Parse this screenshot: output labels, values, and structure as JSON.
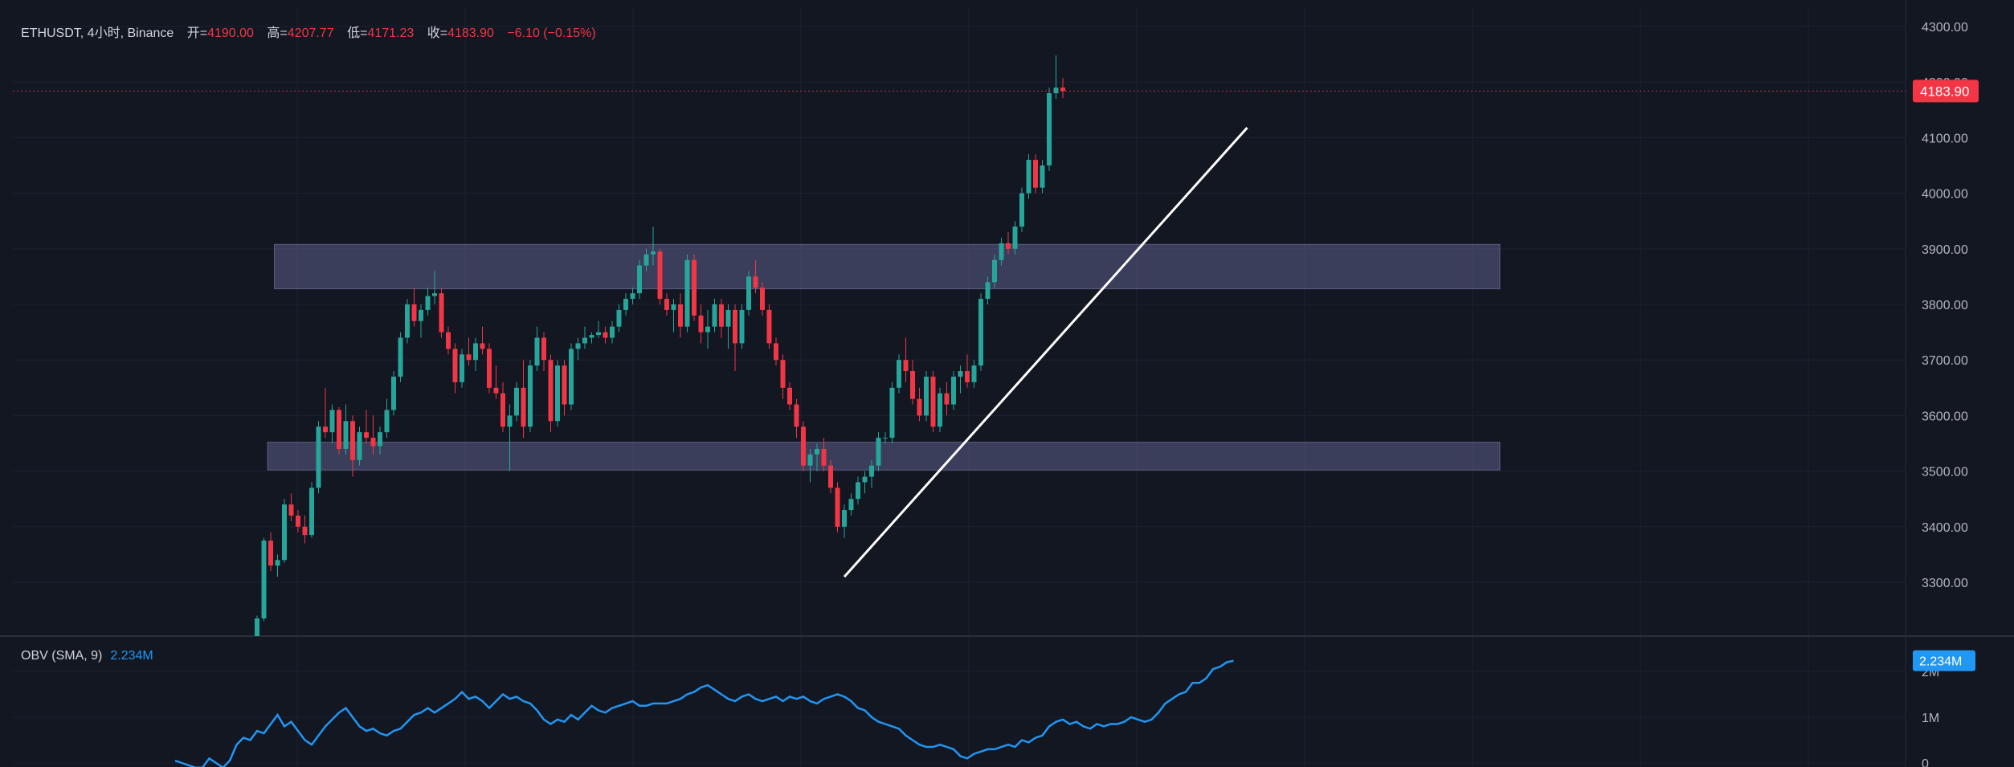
{
  "header": {
    "symbol": "ETHUSDT, 4小时, Binance",
    "open_label": "开=",
    "open_value": "4190.00",
    "high_label": "高=",
    "high_value": "4207.77",
    "low_label": "低=",
    "low_value": "4171.23",
    "close_label": "收=",
    "close_value": "4183.90",
    "change": "−6.10 (−0.15%)"
  },
  "obv": {
    "label": "OBV (SMA, 9)",
    "value": "2.234M"
  },
  "colors": {
    "background": "#131722",
    "up": "#26a69a",
    "down": "#f23645",
    "obv_line": "#2196f3",
    "zone": "#5d5f8a",
    "trendline": "#ffffff",
    "grid": "#1e2230"
  },
  "chart_data": [
    {
      "type": "candlestick",
      "title": "ETHUSDT, 4小时, Binance",
      "y_axis_side": "right",
      "ylim": [
        3190,
        4300
      ],
      "y_ticks": [
        "4300.00",
        "4200.00",
        "4100.00",
        "4000.00",
        "3900.00",
        "3800.00",
        "3700.00",
        "3600.00",
        "3500.00",
        "3400.00",
        "3300.00"
      ],
      "last_price_label": "4183.90",
      "last_price": 4183.9,
      "zones": [
        {
          "from": 3828,
          "to": 3908,
          "start_bar": 3,
          "end_bar": 182
        },
        {
          "from": 3502,
          "to": 3552,
          "start_bar": 2,
          "end_bar": 182
        }
      ],
      "trendline": {
        "from": {
          "bar": 86,
          "price": 3310
        },
        "to": {
          "bar": 145,
          "price": 4118
        }
      },
      "candles": [
        [
          3180,
          3240,
          3175,
          3235
        ],
        [
          3235,
          3380,
          3230,
          3375
        ],
        [
          3375,
          3390,
          3320,
          3330
        ],
        [
          3330,
          3350,
          3310,
          3340
        ],
        [
          3340,
          3450,
          3335,
          3440
        ],
        [
          3440,
          3460,
          3410,
          3420
        ],
        [
          3420,
          3430,
          3390,
          3400
        ],
        [
          3400,
          3420,
          3370,
          3385
        ],
        [
          3385,
          3480,
          3380,
          3470
        ],
        [
          3470,
          3590,
          3460,
          3580
        ],
        [
          3580,
          3650,
          3560,
          3570
        ],
        [
          3570,
          3620,
          3550,
          3610
        ],
        [
          3610,
          3615,
          3530,
          3540
        ],
        [
          3540,
          3620,
          3530,
          3590
        ],
        [
          3590,
          3600,
          3490,
          3520
        ],
        [
          3520,
          3580,
          3510,
          3570
        ],
        [
          3570,
          3610,
          3550,
          3560
        ],
        [
          3560,
          3600,
          3530,
          3545
        ],
        [
          3545,
          3580,
          3530,
          3570
        ],
        [
          3570,
          3630,
          3560,
          3610
        ],
        [
          3610,
          3680,
          3600,
          3670
        ],
        [
          3670,
          3750,
          3660,
          3740
        ],
        [
          3740,
          3810,
          3730,
          3800
        ],
        [
          3800,
          3830,
          3760,
          3770
        ],
        [
          3770,
          3800,
          3740,
          3790
        ],
        [
          3790,
          3830,
          3780,
          3815
        ],
        [
          3815,
          3860,
          3800,
          3820
        ],
        [
          3820,
          3830,
          3740,
          3750
        ],
        [
          3750,
          3760,
          3710,
          3720
        ],
        [
          3720,
          3730,
          3640,
          3660
        ],
        [
          3660,
          3720,
          3650,
          3710
        ],
        [
          3710,
          3740,
          3690,
          3700
        ],
        [
          3700,
          3740,
          3680,
          3730
        ],
        [
          3730,
          3760,
          3710,
          3720
        ],
        [
          3720,
          3730,
          3640,
          3650
        ],
        [
          3650,
          3690,
          3630,
          3640
        ],
        [
          3640,
          3660,
          3570,
          3580
        ],
        [
          3580,
          3620,
          3500,
          3600
        ],
        [
          3600,
          3660,
          3590,
          3650
        ],
        [
          3650,
          3700,
          3560,
          3580
        ],
        [
          3580,
          3700,
          3570,
          3690
        ],
        [
          3690,
          3760,
          3680,
          3740
        ],
        [
          3740,
          3750,
          3680,
          3700
        ],
        [
          3700,
          3710,
          3570,
          3590
        ],
        [
          3590,
          3700,
          3580,
          3690
        ],
        [
          3690,
          3700,
          3600,
          3620
        ],
        [
          3620,
          3730,
          3610,
          3720
        ],
        [
          3720,
          3740,
          3700,
          3730
        ],
        [
          3730,
          3760,
          3720,
          3740
        ],
        [
          3740,
          3750,
          3730,
          3745
        ],
        [
          3745,
          3770,
          3740,
          3750
        ],
        [
          3750,
          3760,
          3730,
          3740
        ],
        [
          3740,
          3770,
          3730,
          3760
        ],
        [
          3760,
          3800,
          3750,
          3790
        ],
        [
          3790,
          3820,
          3780,
          3810
        ],
        [
          3810,
          3830,
          3800,
          3820
        ],
        [
          3820,
          3880,
          3810,
          3870
        ],
        [
          3870,
          3900,
          3860,
          3890
        ],
        [
          3890,
          3940,
          3870,
          3895
        ],
        [
          3895,
          3900,
          3800,
          3810
        ],
        [
          3810,
          3820,
          3780,
          3790
        ],
        [
          3790,
          3810,
          3750,
          3800
        ],
        [
          3800,
          3820,
          3740,
          3760
        ],
        [
          3760,
          3890,
          3750,
          3880
        ],
        [
          3880,
          3890,
          3770,
          3780
        ],
        [
          3780,
          3800,
          3730,
          3750
        ],
        [
          3750,
          3790,
          3720,
          3760
        ],
        [
          3760,
          3810,
          3750,
          3800
        ],
        [
          3800,
          3810,
          3740,
          3760
        ],
        [
          3760,
          3800,
          3720,
          3790
        ],
        [
          3790,
          3800,
          3680,
          3730
        ],
        [
          3730,
          3800,
          3720,
          3790
        ],
        [
          3790,
          3860,
          3780,
          3850
        ],
        [
          3850,
          3880,
          3820,
          3830
        ],
        [
          3830,
          3840,
          3780,
          3790
        ],
        [
          3790,
          3800,
          3720,
          3730
        ],
        [
          3730,
          3740,
          3690,
          3700
        ],
        [
          3700,
          3710,
          3630,
          3650
        ],
        [
          3650,
          3660,
          3610,
          3620
        ],
        [
          3620,
          3630,
          3560,
          3580
        ],
        [
          3580,
          3590,
          3500,
          3510
        ],
        [
          3510,
          3540,
          3480,
          3530
        ],
        [
          3530,
          3550,
          3500,
          3540
        ],
        [
          3540,
          3560,
          3500,
          3510
        ],
        [
          3510,
          3520,
          3460,
          3470
        ],
        [
          3470,
          3480,
          3390,
          3400
        ],
        [
          3400,
          3440,
          3380,
          3430
        ],
        [
          3430,
          3460,
          3420,
          3450
        ],
        [
          3450,
          3490,
          3440,
          3480
        ],
        [
          3480,
          3500,
          3460,
          3490
        ],
        [
          3490,
          3520,
          3470,
          3510
        ],
        [
          3510,
          3570,
          3500,
          3560
        ],
        [
          3560,
          3570,
          3550,
          3560
        ],
        [
          3560,
          3660,
          3550,
          3650
        ],
        [
          3650,
          3710,
          3640,
          3700
        ],
        [
          3700,
          3740,
          3660,
          3680
        ],
        [
          3680,
          3700,
          3620,
          3630
        ],
        [
          3630,
          3650,
          3590,
          3600
        ],
        [
          3600,
          3680,
          3590,
          3670
        ],
        [
          3670,
          3680,
          3570,
          3580
        ],
        [
          3580,
          3650,
          3570,
          3640
        ],
        [
          3640,
          3660,
          3600,
          3620
        ],
        [
          3620,
          3680,
          3610,
          3670
        ],
        [
          3670,
          3690,
          3640,
          3680
        ],
        [
          3680,
          3710,
          3650,
          3660
        ],
        [
          3660,
          3700,
          3650,
          3690
        ],
        [
          3690,
          3820,
          3680,
          3810
        ],
        [
          3810,
          3850,
          3800,
          3840
        ],
        [
          3840,
          3890,
          3830,
          3880
        ],
        [
          3880,
          3920,
          3870,
          3910
        ],
        [
          3910,
          3930,
          3890,
          3900
        ],
        [
          3900,
          3950,
          3890,
          3940
        ],
        [
          3940,
          4010,
          3930,
          4000
        ],
        [
          4000,
          4070,
          3990,
          4060
        ],
        [
          4060,
          4070,
          4000,
          4010
        ],
        [
          4010,
          4060,
          4000,
          4050
        ],
        [
          4050,
          4190,
          4040,
          4180
        ],
        [
          4180,
          4248,
          4170,
          4190
        ],
        [
          4190,
          4207.77,
          4171.23,
          4183.9
        ]
      ]
    },
    {
      "type": "line",
      "title": "OBV (SMA, 9)",
      "y_axis_side": "right",
      "ylim": [
        0,
        2.5
      ],
      "y_ticks": [
        "2M",
        "1M",
        "0"
      ],
      "last_value_label": "2.234M",
      "last_value": 2.234,
      "x_start_bar": -12,
      "values": [
        0.05,
        0.0,
        -0.05,
        -0.1,
        -0.1,
        0.1,
        0.0,
        -0.1,
        0.05,
        0.4,
        0.55,
        0.5,
        0.7,
        0.65,
        0.85,
        1.05,
        0.8,
        0.9,
        0.7,
        0.5,
        0.4,
        0.6,
        0.8,
        0.95,
        1.1,
        1.2,
        1.0,
        0.8,
        0.7,
        0.75,
        0.65,
        0.6,
        0.7,
        0.75,
        0.9,
        1.05,
        1.1,
        1.2,
        1.1,
        1.2,
        1.3,
        1.4,
        1.55,
        1.4,
        1.45,
        1.35,
        1.2,
        1.35,
        1.5,
        1.4,
        1.45,
        1.35,
        1.3,
        1.15,
        0.95,
        0.85,
        0.95,
        0.9,
        1.05,
        0.95,
        1.1,
        1.25,
        1.15,
        1.1,
        1.2,
        1.25,
        1.3,
        1.35,
        1.25,
        1.25,
        1.3,
        1.3,
        1.3,
        1.35,
        1.4,
        1.5,
        1.55,
        1.65,
        1.7,
        1.6,
        1.5,
        1.4,
        1.35,
        1.45,
        1.5,
        1.4,
        1.35,
        1.4,
        1.45,
        1.35,
        1.45,
        1.4,
        1.45,
        1.35,
        1.3,
        1.4,
        1.45,
        1.5,
        1.45,
        1.35,
        1.2,
        1.15,
        1.0,
        0.9,
        0.85,
        0.8,
        0.75,
        0.6,
        0.5,
        0.4,
        0.35,
        0.35,
        0.4,
        0.35,
        0.3,
        0.15,
        0.1,
        0.2,
        0.25,
        0.3,
        0.3,
        0.35,
        0.4,
        0.35,
        0.5,
        0.45,
        0.55,
        0.6,
        0.8,
        0.9,
        0.95,
        0.85,
        0.9,
        0.8,
        0.75,
        0.85,
        0.8,
        0.85,
        0.85,
        0.9,
        1.0,
        0.95,
        0.9,
        0.95,
        1.1,
        1.3,
        1.4,
        1.5,
        1.55,
        1.75,
        1.75,
        1.85,
        2.05,
        2.1,
        2.2,
        2.234
      ]
    }
  ]
}
